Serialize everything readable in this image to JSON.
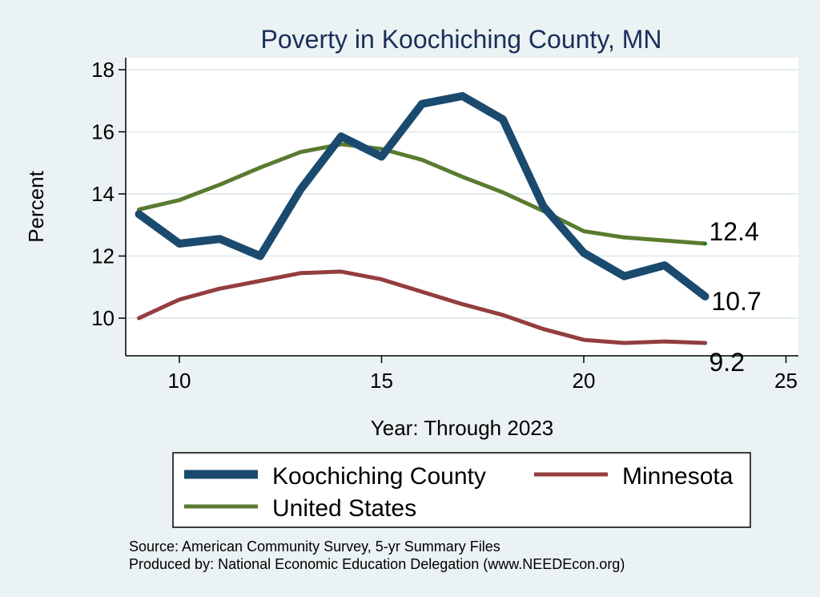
{
  "chart_data": {
    "type": "line",
    "title": "Poverty in Koochiching County, MN",
    "xlabel": "Year: Through 2023",
    "ylabel": "Percent",
    "xlim": [
      9,
      25
    ],
    "ylim": [
      8.7,
      18.4
    ],
    "xticks": [
      10,
      15,
      20,
      25
    ],
    "yticks": [
      10,
      12,
      14,
      16,
      18
    ],
    "grid": true,
    "legend_position": "bottom",
    "series": [
      {
        "name": "Koochiching County",
        "color": "#1b4a6f",
        "x": [
          9,
          10,
          11,
          12,
          13,
          14,
          15,
          16,
          17,
          18,
          19,
          20,
          21,
          22,
          23
        ],
        "values": [
          13.35,
          12.4,
          12.55,
          12.0,
          14.15,
          15.85,
          15.2,
          16.9,
          17.15,
          16.4,
          13.6,
          12.1,
          11.35,
          11.7,
          10.7
        ],
        "end_label": "10.7"
      },
      {
        "name": "Minnesota",
        "color": "#943d3f",
        "x": [
          9,
          10,
          11,
          12,
          13,
          14,
          15,
          16,
          17,
          18,
          19,
          20,
          21,
          22,
          23
        ],
        "values": [
          10.0,
          10.6,
          10.95,
          11.2,
          11.45,
          11.5,
          11.25,
          10.85,
          10.45,
          10.1,
          9.65,
          9.3,
          9.2,
          9.25,
          9.2
        ],
        "end_label": "9.2"
      },
      {
        "name": "United States",
        "color": "#5a7b2f",
        "x": [
          9,
          10,
          11,
          12,
          13,
          14,
          15,
          16,
          17,
          18,
          19,
          20,
          21,
          22,
          23
        ],
        "values": [
          13.5,
          13.8,
          14.3,
          14.85,
          15.35,
          15.6,
          15.45,
          15.1,
          14.55,
          14.05,
          13.45,
          12.8,
          12.6,
          12.5,
          12.4
        ],
        "end_label": "12.4"
      }
    ],
    "legend": [
      "Koochiching County",
      "Minnesota",
      "United States"
    ]
  },
  "footer": {
    "source": "Source: American Community Survey, 5-yr Summary Files",
    "produced": "Produced by: National Economic Education Delegation (www.NEEDEcon.org)"
  }
}
